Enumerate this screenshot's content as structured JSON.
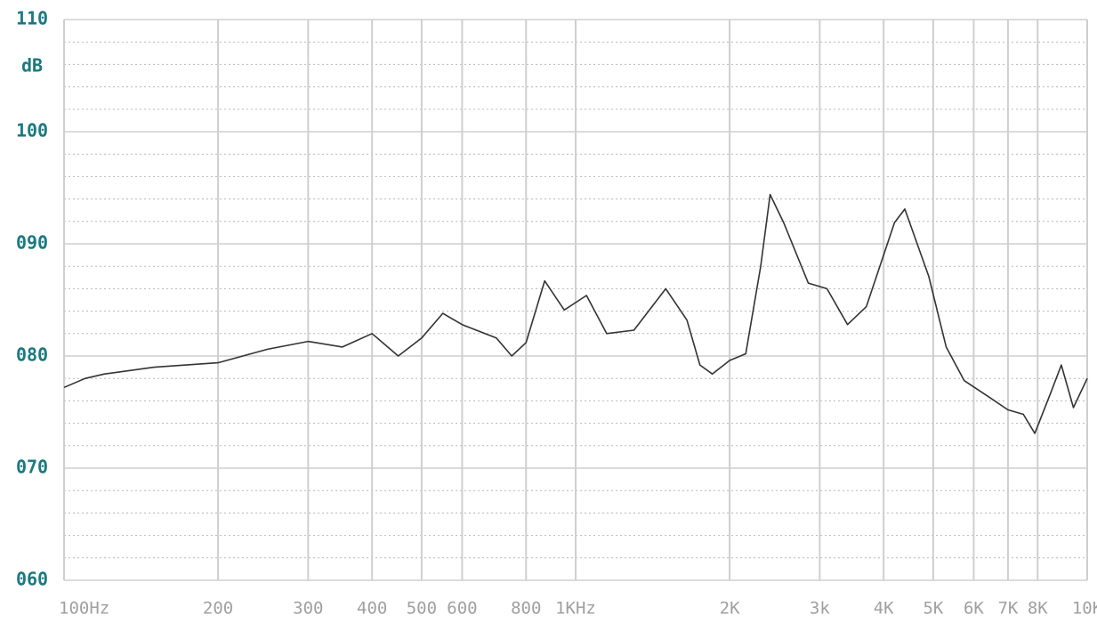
{
  "chart_data": {
    "type": "line",
    "y_unit_label": "dB",
    "xscale": "log",
    "xlim": [
      100,
      10000
    ],
    "xticks": [
      {
        "value": 100,
        "label": "100Hz"
      },
      200,
      300,
      400,
      500,
      600,
      800,
      {
        "value": 1000,
        "label": "1KHz"
      },
      {
        "value": 2000,
        "label": "2K"
      },
      {
        "value": 3000,
        "label": "3k"
      },
      {
        "value": 4000,
        "label": "4K"
      },
      {
        "value": 5000,
        "label": "5K"
      },
      {
        "value": 6000,
        "label": "6K"
      },
      {
        "value": 7000,
        "label": "7K"
      },
      {
        "value": 8000,
        "label": "8K"
      },
      {
        "value": 10000,
        "label": "10K"
      }
    ],
    "ylim": [
      60,
      110
    ],
    "yticks": [
      {
        "value": 60,
        "label": "060"
      },
      {
        "value": 70,
        "label": "070"
      },
      {
        "value": 80,
        "label": "080"
      },
      {
        "value": 90,
        "label": "090"
      },
      {
        "value": 100,
        "label": "100"
      },
      {
        "value": 110,
        "label": "110"
      }
    ],
    "yminor_ticks": [
      62,
      64,
      66,
      68,
      72,
      74,
      76,
      78,
      82,
      84,
      86,
      88,
      92,
      94,
      96,
      98,
      102,
      104,
      106,
      108
    ],
    "grid": true,
    "color": "#333333",
    "x": [
      100,
      110,
      120,
      150,
      200,
      250,
      300,
      350,
      400,
      450,
      500,
      550,
      600,
      700,
      750,
      800,
      870,
      950,
      1050,
      1150,
      1300,
      1500,
      1650,
      1750,
      1850,
      2000,
      2150,
      2300,
      2400,
      2550,
      2850,
      3100,
      3400,
      3700,
      4200,
      4400,
      4900,
      5300,
      5750,
      6400,
      7000,
      7500,
      7900,
      8500,
      8900,
      9400,
      10000
    ],
    "values": [
      77.2,
      78.0,
      78.4,
      79.0,
      79.4,
      80.6,
      81.3,
      80.8,
      82.0,
      80.0,
      81.6,
      83.8,
      82.8,
      81.6,
      80.0,
      81.2,
      86.7,
      84.1,
      85.4,
      82.0,
      82.3,
      86.0,
      83.2,
      79.2,
      78.4,
      79.6,
      80.2,
      88.0,
      94.4,
      91.9,
      86.5,
      86.0,
      82.8,
      84.4,
      91.9,
      93.1,
      87.1,
      80.8,
      77.8,
      76.4,
      75.2,
      74.8,
      73.1,
      76.8,
      79.2,
      75.4,
      78.0
    ]
  }
}
